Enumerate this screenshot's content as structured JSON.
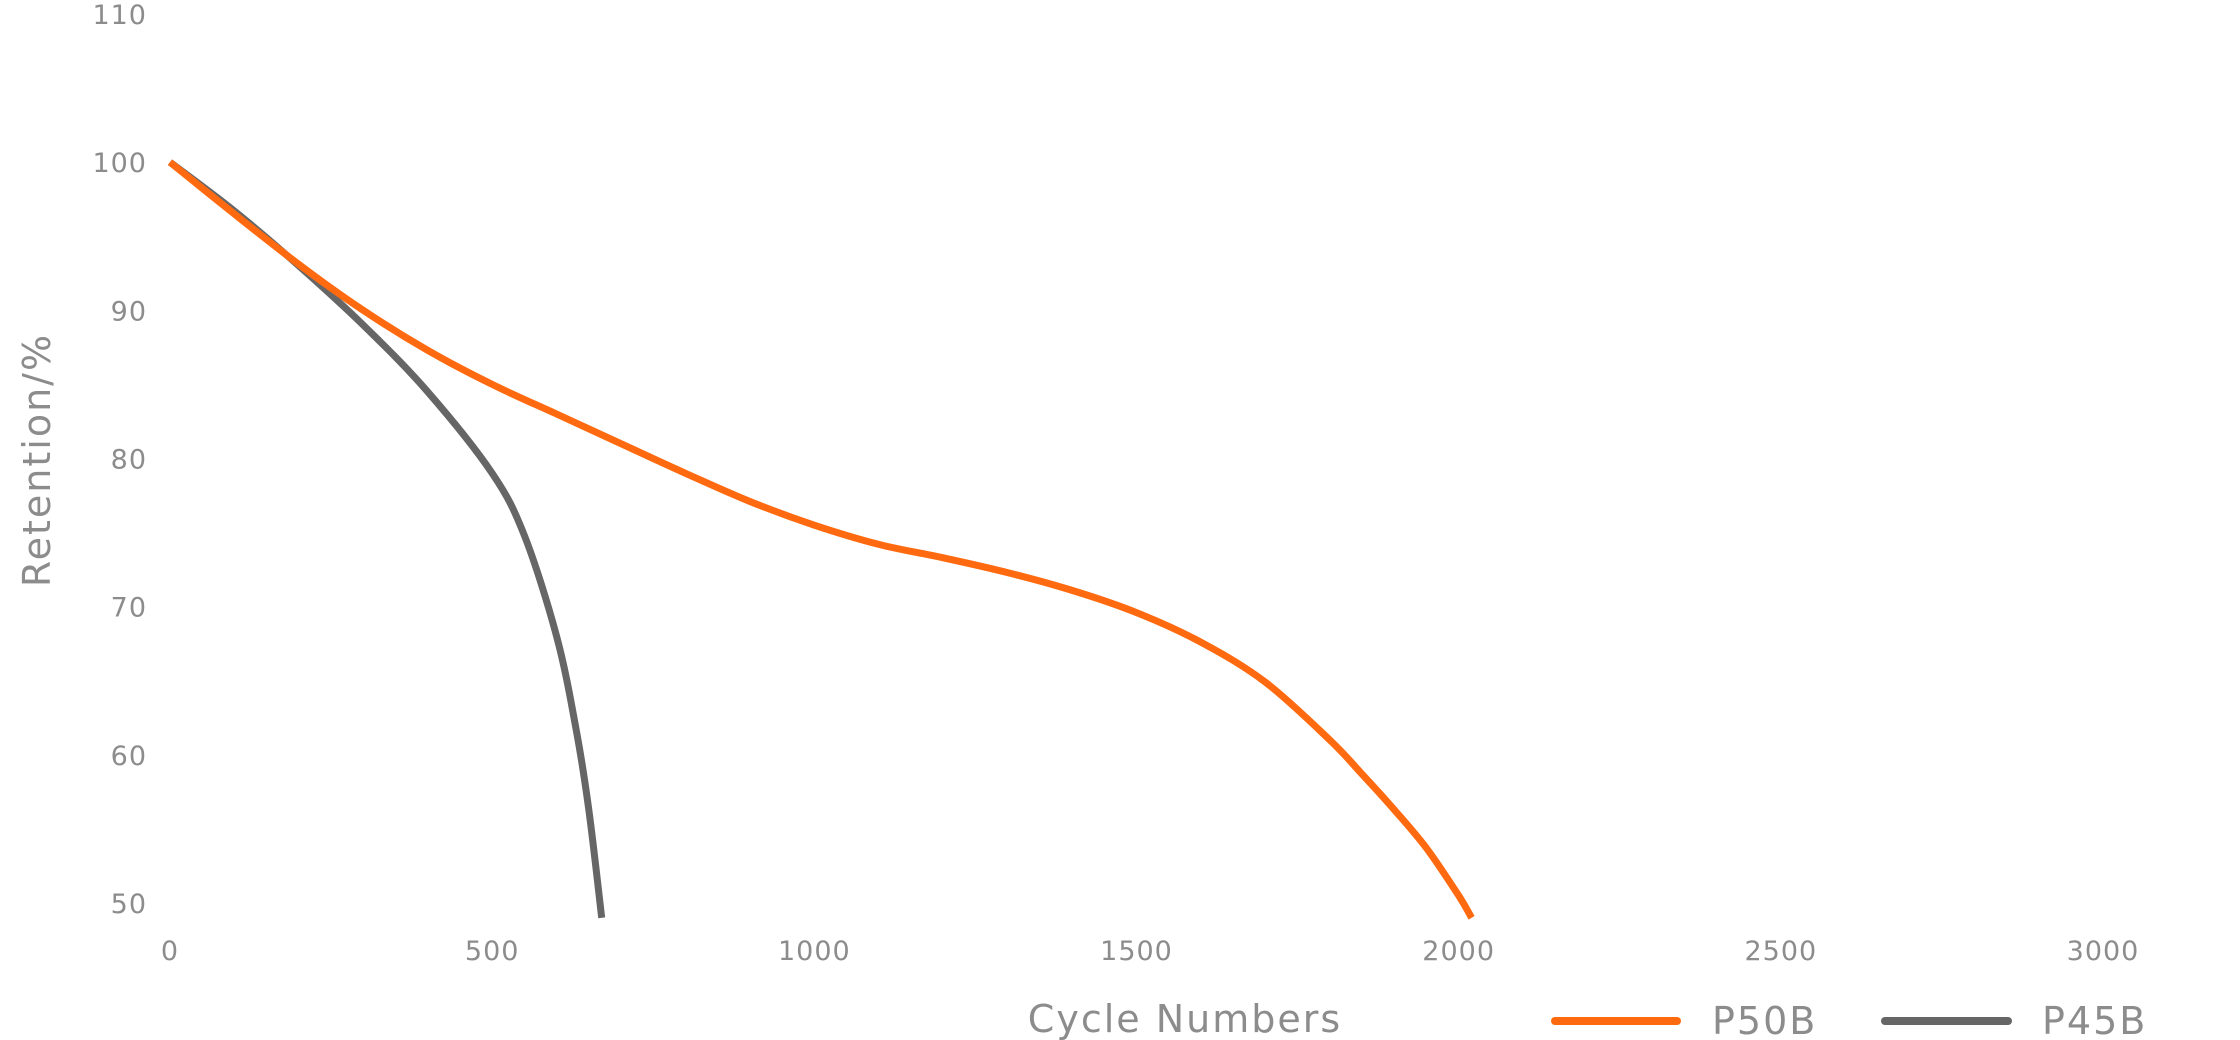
{
  "chart_data": {
    "type": "line",
    "xlabel": "Cycle Numbers",
    "ylabel": "Retention/%",
    "xlim": [
      0,
      3000
    ],
    "ylim": [
      50,
      110
    ],
    "x_ticks": [
      0,
      500,
      1000,
      1500,
      2000,
      2500,
      3000
    ],
    "y_ticks": [
      50,
      60,
      70,
      80,
      90,
      100,
      110
    ],
    "grid": false,
    "legend_position": "bottom-right",
    "series": [
      {
        "name": "P50B",
        "color": "#ff6a10",
        "x": [
          0,
          100,
          200,
          300,
          400,
          500,
          600,
          700,
          800,
          900,
          1000,
          1100,
          1200,
          1300,
          1400,
          1500,
          1600,
          1700,
          1800,
          1850,
          1900,
          1950,
          2000,
          2020
        ],
        "y": [
          100,
          96.5,
          93.1,
          90.0,
          87.3,
          85.0,
          83.0,
          81.0,
          79.0,
          77.1,
          75.5,
          74.2,
          73.3,
          72.3,
          71.1,
          69.6,
          67.6,
          64.9,
          61.0,
          58.7,
          56.3,
          53.7,
          50.5,
          49.0
        ]
      },
      {
        "name": "P45B",
        "color": "#666666",
        "x": [
          0,
          100,
          200,
          300,
          400,
          500,
          550,
          600,
          630,
          650,
          670
        ],
        "y": [
          100,
          96.7,
          93.0,
          89.0,
          84.5,
          79.0,
          74.8,
          68.0,
          61.8,
          56.3,
          49.0
        ]
      }
    ]
  }
}
